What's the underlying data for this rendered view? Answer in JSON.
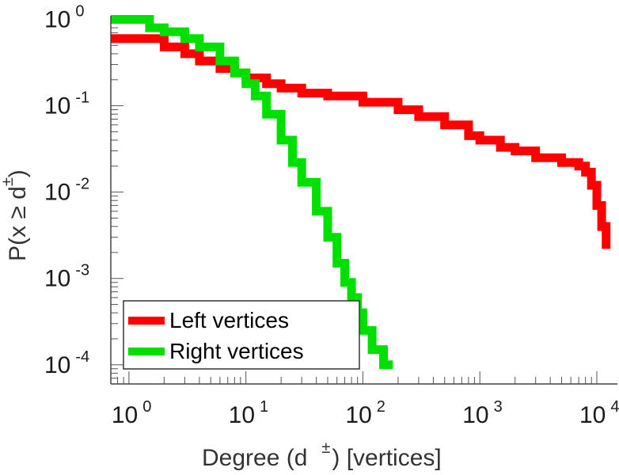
{
  "chart_data": {
    "type": "line",
    "title": "",
    "xlabel": {
      "before": "Degree (d",
      "sup": "±",
      "after": ") [vertices]"
    },
    "ylabel": {
      "before": "P(x ≥ d",
      "sup": "±",
      "after": ")"
    },
    "x_scale": "log",
    "y_scale": "log",
    "xlim": [
      0.7,
      15000
    ],
    "ylim": [
      6e-05,
      1.1
    ],
    "x_ticks": [
      {
        "base": "10",
        "exp": "0",
        "value": 1
      },
      {
        "base": "10",
        "exp": "1",
        "value": 10
      },
      {
        "base": "10",
        "exp": "2",
        "value": 100
      },
      {
        "base": "10",
        "exp": "3",
        "value": 1000
      },
      {
        "base": "10",
        "exp": "4",
        "value": 10000
      }
    ],
    "y_ticks": [
      {
        "base": "10",
        "exp": "0",
        "value": 1
      },
      {
        "base": "10",
        "exp": "-1",
        "value": 0.1
      },
      {
        "base": "10",
        "exp": "-2",
        "value": 0.01
      },
      {
        "base": "10",
        "exp": "-3",
        "value": 0.001
      },
      {
        "base": "10",
        "exp": "-4",
        "value": 0.0001
      }
    ],
    "grid": false,
    "legend_position": "bottom-left",
    "series": [
      {
        "name": "Left vertices",
        "color": "#ff0000",
        "x": [
          0.7,
          1,
          2,
          3,
          4,
          6,
          8,
          10,
          15,
          20,
          30,
          50,
          100,
          200,
          300,
          500,
          800,
          1000,
          1500,
          2000,
          3000,
          5000,
          7000,
          8000,
          9000,
          10000,
          11000,
          12000
        ],
        "y": [
          0.6,
          0.6,
          0.48,
          0.4,
          0.33,
          0.27,
          0.24,
          0.21,
          0.18,
          0.16,
          0.14,
          0.13,
          0.11,
          0.09,
          0.075,
          0.06,
          0.045,
          0.04,
          0.033,
          0.03,
          0.025,
          0.022,
          0.02,
          0.017,
          0.012,
          0.007,
          0.004,
          0.0022
        ]
      },
      {
        "name": "Right vertices",
        "color": "#00e000",
        "x": [
          0.7,
          1,
          1.5,
          2,
          3,
          4,
          6,
          8,
          10,
          12,
          15,
          20,
          25,
          30,
          40,
          50,
          60,
          70,
          80,
          90,
          100,
          120,
          150,
          180
        ],
        "y": [
          1.0,
          1.0,
          0.8,
          0.72,
          0.6,
          0.48,
          0.33,
          0.24,
          0.18,
          0.13,
          0.08,
          0.04,
          0.022,
          0.013,
          0.006,
          0.003,
          0.0015,
          0.0009,
          0.0006,
          0.0004,
          0.00025,
          0.00015,
          0.0001,
          0.0001
        ]
      }
    ]
  }
}
